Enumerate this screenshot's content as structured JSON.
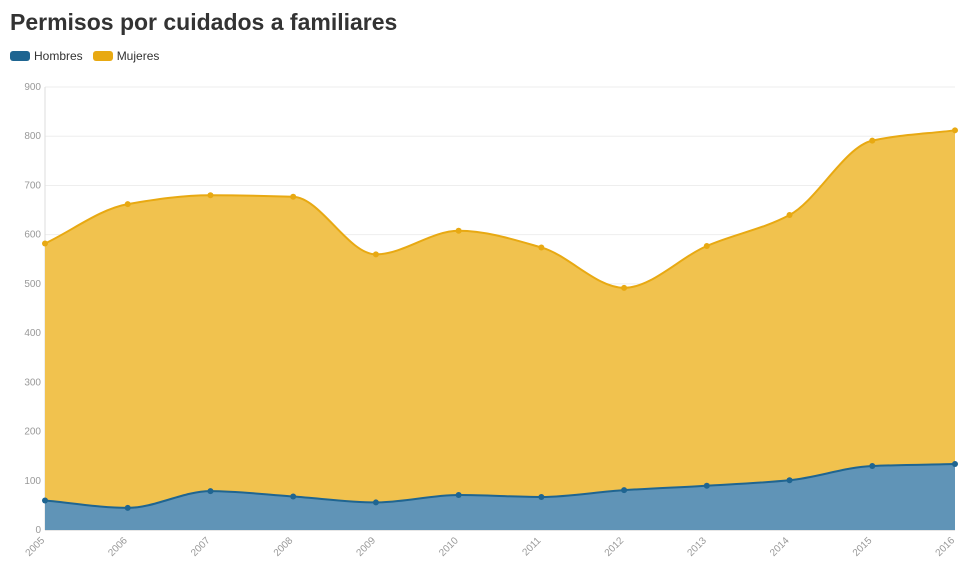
{
  "title": "Permisos por cuidados a familiares",
  "legend": {
    "hombres": "Hombres",
    "mujeres": "Mujeres"
  },
  "colors": {
    "hombres_fill": "#6094b7",
    "hombres_line": "#1f6591",
    "mujeres_fill": "#f1c24e",
    "mujeres_line": "#e8a912"
  },
  "chart_data": {
    "type": "area",
    "stacked": true,
    "title": "Permisos por cuidados a familiares",
    "x": [
      "2005",
      "2006",
      "2007",
      "2008",
      "2009",
      "2010",
      "2011",
      "2012",
      "2013",
      "2014",
      "2015",
      "2016"
    ],
    "ylim": [
      0,
      900
    ],
    "yticks": [
      "0",
      "100",
      "200",
      "300",
      "400",
      "500",
      "600",
      "700",
      "800",
      "900"
    ],
    "grid": true,
    "legend_position": "top-left",
    "series": [
      {
        "name": "Hombres",
        "values": [
          60,
          45,
          79,
          68,
          56,
          71,
          67,
          81,
          90,
          101,
          130,
          134
        ]
      },
      {
        "name": "Mujeres",
        "values": [
          522,
          617,
          601,
          609,
          504,
          537,
          507,
          411,
          487,
          539,
          661,
          678
        ]
      }
    ]
  }
}
